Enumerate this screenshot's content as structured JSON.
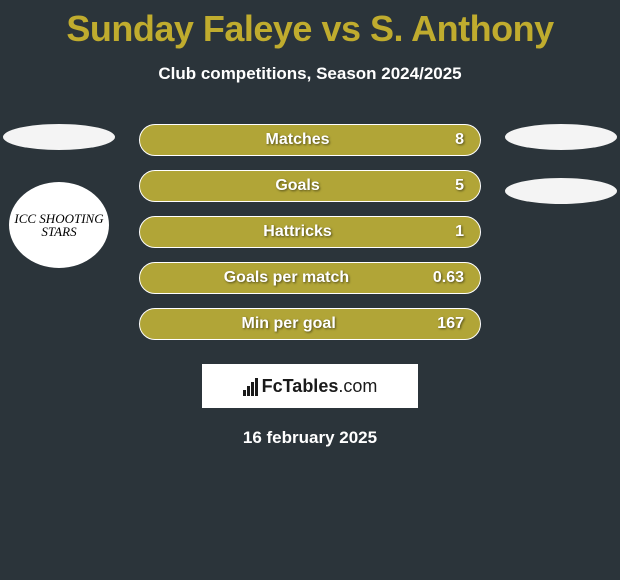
{
  "header": {
    "title": "Sunday Faleye vs S. Anthony",
    "subtitle": "Club competitions, Season 2024/2025"
  },
  "left": {
    "logo_text": "ICC SHOOTING STARS"
  },
  "stats": [
    {
      "label": "Matches",
      "value": "8"
    },
    {
      "label": "Goals",
      "value": "5"
    },
    {
      "label": "Hattricks",
      "value": "1"
    },
    {
      "label": "Goals per match",
      "value": "0.63"
    },
    {
      "label": "Min per goal",
      "value": "167"
    }
  ],
  "brand": {
    "name_strong": "FcTables",
    "name_light": ".com"
  },
  "footer": {
    "date": "16 february 2025"
  },
  "colors": {
    "accent": "#c0ac2e",
    "bar_bg": "#b1a537",
    "page_bg": "#2b343a",
    "text": "#ffffff"
  }
}
